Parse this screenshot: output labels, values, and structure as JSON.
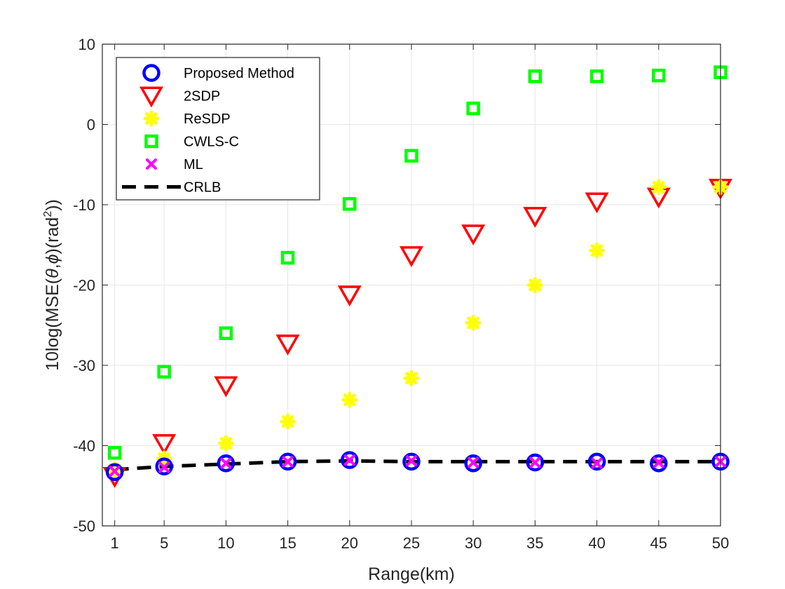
{
  "chart_data": {
    "type": "scatter",
    "title": "",
    "xlabel": "Range(km)",
    "ylabel_prefix": "10log(MSE(",
    "ylabel_theta": "θ",
    "ylabel_comma": ",",
    "ylabel_phi": "ϕ",
    "ylabel_mid": ")(rad",
    "ylabel_sup": "2",
    "ylabel_suffix": "))",
    "xlim": [
      0,
      50
    ],
    "ylim": [
      -50,
      10
    ],
    "x": [
      1,
      5,
      10,
      15,
      20,
      25,
      30,
      35,
      40,
      45,
      50
    ],
    "xticks": [
      1,
      5,
      10,
      15,
      20,
      25,
      30,
      35,
      40,
      45,
      50
    ],
    "yticks": [
      -50,
      -40,
      -30,
      -20,
      -10,
      0,
      10
    ],
    "grid": true,
    "legend_position": "top-left",
    "series": [
      {
        "name": "Proposed Method",
        "marker": "circle",
        "color": "#0000ff",
        "values": [
          -43.3,
          -42.6,
          -42.2,
          -42.0,
          -41.8,
          -42.0,
          -42.2,
          -42.1,
          -42.0,
          -42.2,
          -42.0
        ]
      },
      {
        "name": "2SDP",
        "marker": "triangle-down",
        "color": "#ff0000",
        "values": [
          -43.8,
          -39.7,
          -32.5,
          -27.3,
          -21.2,
          -16.3,
          -13.6,
          -11.4,
          -9.6,
          -9.0,
          -7.9
        ]
      },
      {
        "name": "ReSDP",
        "marker": "asterisk",
        "color": "#ffff00",
        "values": [
          -43.0,
          -41.6,
          -39.7,
          -37.0,
          -34.3,
          -31.6,
          -24.7,
          -20.0,
          -15.7,
          -7.8,
          -7.8
        ]
      },
      {
        "name": "CWLS-C",
        "marker": "square",
        "color": "#00ff00",
        "values": [
          -40.9,
          -30.8,
          -26.0,
          -16.6,
          -9.9,
          -3.9,
          2.0,
          6.0,
          6.0,
          6.1,
          6.5
        ]
      },
      {
        "name": "ML",
        "marker": "x",
        "color": "#ff00ff",
        "values": [
          -43.2,
          -42.7,
          -42.2,
          -42.0,
          -41.8,
          -41.9,
          -42.1,
          -42.1,
          -42.2,
          -42.1,
          -42.0
        ]
      },
      {
        "name": "CRLB",
        "marker": "dashed-line",
        "color": "#000000",
        "values": [
          -43.0,
          -42.6,
          -42.3,
          -42.0,
          -41.9,
          -42.0,
          -42.0,
          -42.0,
          -42.0,
          -42.0,
          -42.0
        ]
      }
    ]
  }
}
